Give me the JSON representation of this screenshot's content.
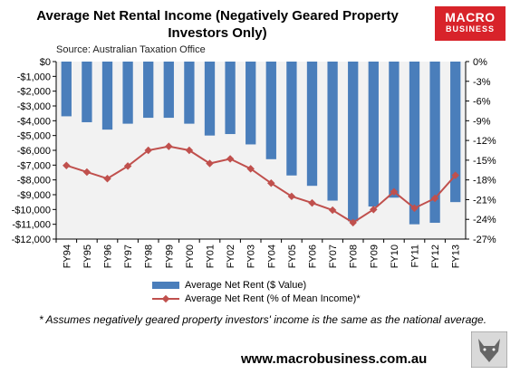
{
  "title": "Average Net Rental Income (Negatively Geared Property Investors Only)",
  "source": "Source: Australian Taxation Office",
  "logo": {
    "line1": "MACRO",
    "line2": "BUSINESS"
  },
  "footnote": "* Assumes negatively geared property investors' income is the same as the national average.",
  "url": "www.macrobusiness.com.au",
  "colors": {
    "bar": "#4a7ebb",
    "line": "#c0504d",
    "marker": "#c0504d",
    "logo": "#d8232a"
  },
  "chart_data": {
    "type": "bar+line",
    "categories": [
      "FY94",
      "FY95",
      "FY96",
      "FY97",
      "FY98",
      "FY99",
      "FY00",
      "FY01",
      "FY02",
      "FY03",
      "FY04",
      "FY05",
      "FY06",
      "FY07",
      "FY08",
      "FY09",
      "FY10",
      "FY11",
      "FY12",
      "FY13"
    ],
    "series": [
      {
        "name": "Average Net Rent ($ Value)",
        "axis": "left",
        "kind": "bar",
        "values": [
          -3700,
          -4100,
          -4600,
          -4200,
          -3800,
          -3800,
          -4200,
          -5000,
          -4900,
          -5600,
          -6600,
          -7700,
          -8400,
          -9400,
          -10800,
          -9800,
          -9200,
          -11000,
          -10900,
          -9500
        ]
      },
      {
        "name": "Average Net Rent (% of Mean Income)*",
        "axis": "right",
        "kind": "line",
        "values": [
          -15.8,
          -16.8,
          -17.8,
          -15.9,
          -13.5,
          -12.9,
          -13.5,
          -15.5,
          -14.8,
          -16.3,
          -18.5,
          -20.5,
          -21.5,
          -22.6,
          -24.5,
          -22.5,
          -19.8,
          -22.3,
          -20.8,
          -17.3
        ]
      }
    ],
    "y_left": {
      "min": -12000,
      "max": 0,
      "step": 1000,
      "ticks": [
        "$0",
        "-$1,000",
        "-$2,000",
        "-$3,000",
        "-$4,000",
        "-$5,000",
        "-$6,000",
        "-$7,000",
        "-$8,000",
        "-$9,000",
        "-$10,000",
        "-$11,000",
        "-$12,000"
      ]
    },
    "y_right": {
      "min": -27,
      "max": 0,
      "step": 3,
      "ticks": [
        "0%",
        "-3%",
        "-6%",
        "-9%",
        "-12%",
        "-15%",
        "-18%",
        "-21%",
        "-24%",
        "-27%"
      ]
    },
    "legend_position": "bottom"
  }
}
